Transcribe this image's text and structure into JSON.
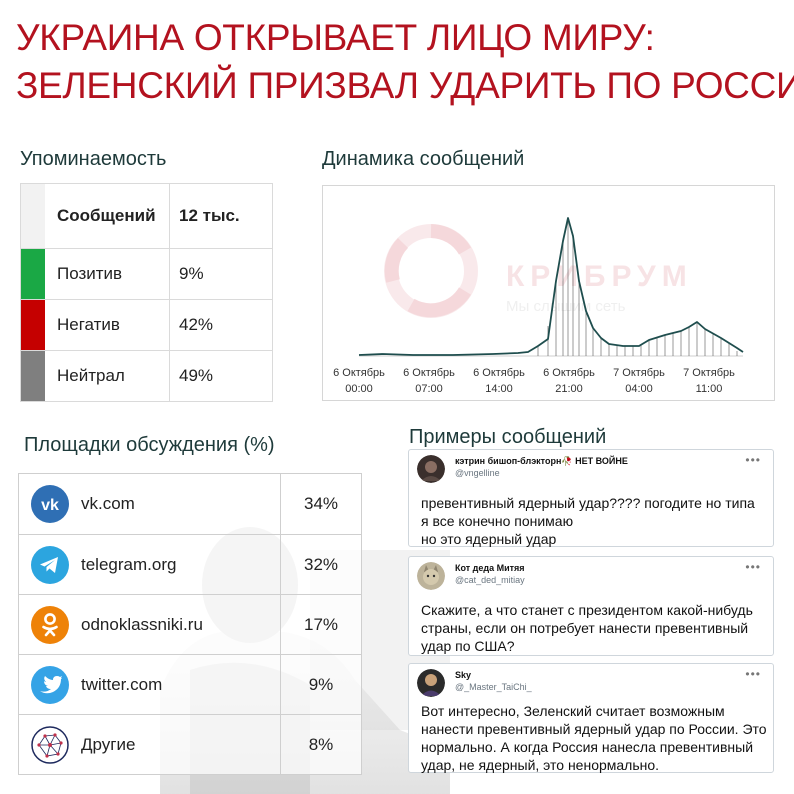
{
  "headline": {
    "line1": "УКРАИНА ОТКРЫВАЕТ ЛИЦО МИРУ:",
    "line2": "ЗЕЛЕНСКИЙ ПРИЗВАЛ УДАРИТЬ ПО РОССИИ"
  },
  "mentions": {
    "title": "Упоминаемость",
    "rows": [
      {
        "label": "Сообщений",
        "value": "12 тыс.",
        "color": "#f2f2f2"
      },
      {
        "label": "Позитив",
        "value": "9%",
        "color": "#1aa845"
      },
      {
        "label": "Негатив",
        "value": "42%",
        "color": "#c50000"
      },
      {
        "label": "Нейтрал",
        "value": "49%",
        "color": "#7f7f7f"
      }
    ]
  },
  "dynamics": {
    "title": "Динамика сообщений",
    "watermark_brand": "КРИБРУМ",
    "watermark_tagline": "Мы слышим сеть",
    "ticks": [
      {
        "date": "6 Октябрь",
        "time": "00:00"
      },
      {
        "date": "6 Октябрь",
        "time": "07:00"
      },
      {
        "date": "6 Октябрь",
        "time": "14:00"
      },
      {
        "date": "6 Октябрь",
        "time": "21:00"
      },
      {
        "date": "7 Октябрь",
        "time": "04:00"
      },
      {
        "date": "7 Октябрь",
        "time": "11:00"
      }
    ],
    "line_color": "#1f4e4e"
  },
  "platforms": {
    "title": "Площадки обсуждения (%)",
    "rows": [
      {
        "name": "vk.com",
        "value": "34%",
        "icon": "vk-icon",
        "color": "#2f6fb4"
      },
      {
        "name": "telegram.org",
        "value": "32%",
        "icon": "telegram-icon",
        "color": "#2ca5df"
      },
      {
        "name": "odnoklassniki.ru",
        "value": "17%",
        "icon": "odnoklassniki-icon",
        "color": "#ee8208"
      },
      {
        "name": "twitter.com",
        "value": "9%",
        "icon": "twitter-icon",
        "color": "#35a3e6"
      },
      {
        "name": "Другие",
        "value": "8%",
        "icon": "network-icon",
        "color": "#1e2a5e"
      }
    ]
  },
  "examples": {
    "title": "Примеры сообщений",
    "tweets": [
      {
        "name": "кэтрин бишоп-блэкторн🥀 НЕТ ВОЙНЕ",
        "handle": "@vngelline",
        "lines": [
          "превентивный ядерный удар???? погодите но типа",
          "я все конечно понимаю",
          "но это ядерный удар"
        ]
      },
      {
        "name": "Кот деда Митяя",
        "handle": "@cat_ded_mitiay",
        "lines": [
          "Скажите, а что станет с президентом какой-нибудь",
          "страны, если он потребует нанести превентивный",
          "удар по США?"
        ]
      },
      {
        "name": "Sky",
        "handle": "@_Master_TaiChi_",
        "lines": [
          "Вот интересно, Зеленский считает возможным",
          "нанести превентивный ядерный удар по России. Это",
          "нормально. А когда Россия нанесла превентивный",
          "удар, не ядерный, это ненормально."
        ]
      }
    ]
  }
}
